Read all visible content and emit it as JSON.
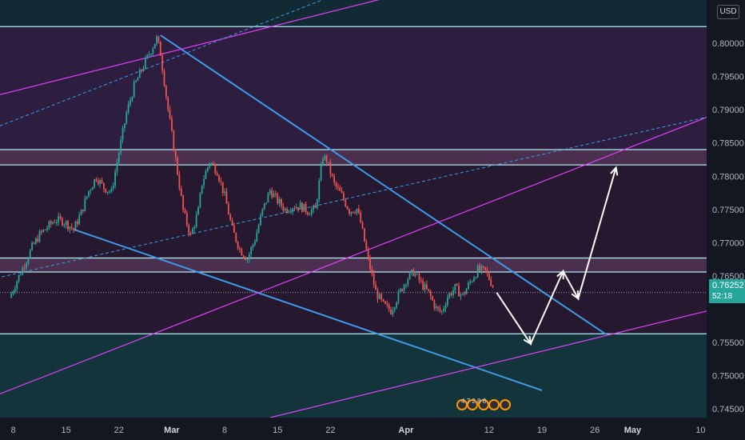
{
  "chart_data": {
    "type": "candlestick",
    "symbol_currency": "USD",
    "last_price": "0.76252",
    "countdown": "52:18",
    "y_ticks": [
      "0.80000",
      "0.79500",
      "0.79000",
      "0.78500",
      "0.78000",
      "0.77500",
      "0.77000",
      "0.76500",
      "0.75500",
      "0.75000",
      "0.74500"
    ],
    "ylim": [
      0.7437,
      0.8065
    ],
    "x_ticks": [
      {
        "label": "8",
        "day": 0,
        "month": false
      },
      {
        "label": "15",
        "day": 7,
        "month": false
      },
      {
        "label": "22",
        "day": 14,
        "month": false
      },
      {
        "label": "Mar",
        "day": 21,
        "month": true
      },
      {
        "label": "8",
        "day": 28,
        "month": false
      },
      {
        "label": "15",
        "day": 35,
        "month": false
      },
      {
        "label": "22",
        "day": 42,
        "month": false
      },
      {
        "label": "Apr",
        "day": 52,
        "month": true
      },
      {
        "label": "12",
        "day": 63,
        "month": false
      },
      {
        "label": "19",
        "day": 70,
        "month": false
      },
      {
        "label": "26",
        "day": 77,
        "month": false
      },
      {
        "label": "May",
        "day": 82,
        "month": true
      },
      {
        "label": "10",
        "day": 91,
        "month": false
      }
    ],
    "path": [
      [
        -0.5,
        0.7617
      ],
      [
        0.5,
        0.7643
      ],
      [
        1.5,
        0.7668
      ],
      [
        2.5,
        0.7693
      ],
      [
        3.5,
        0.7712
      ],
      [
        4.5,
        0.7723
      ],
      [
        5.5,
        0.7734
      ],
      [
        6.5,
        0.7733
      ],
      [
        7.5,
        0.7725
      ],
      [
        8.0,
        0.772
      ],
      [
        9.0,
        0.7745
      ],
      [
        10.0,
        0.7778
      ],
      [
        11.0,
        0.7799
      ],
      [
        12.0,
        0.7783
      ],
      [
        13.0,
        0.7776
      ],
      [
        14.0,
        0.7836
      ],
      [
        15.0,
        0.7895
      ],
      [
        16.0,
        0.7935
      ],
      [
        17.0,
        0.796
      ],
      [
        18.0,
        0.7984
      ],
      [
        19.0,
        0.8007
      ],
      [
        19.5,
        0.7985
      ],
      [
        20.5,
        0.79
      ],
      [
        21.5,
        0.7825
      ],
      [
        22.5,
        0.7748
      ],
      [
        23.5,
        0.771
      ],
      [
        24.5,
        0.7748
      ],
      [
        25.0,
        0.779
      ],
      [
        26.0,
        0.7822
      ],
      [
        27.0,
        0.7808
      ],
      [
        28.0,
        0.777
      ],
      [
        29.0,
        0.772
      ],
      [
        30.0,
        0.769
      ],
      [
        31.0,
        0.7676
      ],
      [
        32.0,
        0.7705
      ],
      [
        33.0,
        0.7748
      ],
      [
        34.0,
        0.7779
      ],
      [
        35.0,
        0.7763
      ],
      [
        36.0,
        0.775
      ],
      [
        37.0,
        0.7755
      ],
      [
        38.0,
        0.7755
      ],
      [
        39.0,
        0.7748
      ],
      [
        40.0,
        0.775
      ],
      [
        41.0,
        0.783
      ],
      [
        41.5,
        0.7824
      ],
      [
        42.5,
        0.7788
      ],
      [
        43.5,
        0.7771
      ],
      [
        44.5,
        0.7748
      ],
      [
        45.5,
        0.7751
      ],
      [
        46.0,
        0.773
      ],
      [
        47.0,
        0.7674
      ],
      [
        48.0,
        0.7626
      ],
      [
        49.0,
        0.7606
      ],
      [
        50.0,
        0.7598
      ],
      [
        51.0,
        0.7621
      ],
      [
        52.0,
        0.7644
      ],
      [
        53.0,
        0.7656
      ],
      [
        54.0,
        0.7639
      ],
      [
        55.0,
        0.7624
      ],
      [
        56.0,
        0.7601
      ],
      [
        56.7,
        0.7595
      ],
      [
        57.5,
        0.7619
      ],
      [
        58.5,
        0.7632
      ],
      [
        59.5,
        0.762
      ],
      [
        60.5,
        0.7641
      ],
      [
        61.5,
        0.7659
      ],
      [
        62.5,
        0.7657
      ],
      [
        63.5,
        0.7636
      ]
    ],
    "trendlines": [
      {
        "from": [
          19.5,
          0.8012
        ],
        "to": [
          78.5,
          0.7562
        ],
        "color": "#3d9be9",
        "width": 2
      },
      {
        "from": [
          8.0,
          0.772
        ],
        "to": [
          70.0,
          0.7478
        ],
        "color": "#3d9be9",
        "width": 2
      },
      {
        "from": [
          -8.0,
          0.7445
        ],
        "to": [
          100.0,
          0.7925
        ],
        "color": "#e040fb",
        "width": 1.2
      },
      {
        "from": [
          -8.0,
          0.7905
        ],
        "to": [
          50.0,
          0.807
        ],
        "color": "#e040fb",
        "width": 1.2
      },
      {
        "from": [
          34.0,
          0.7437
        ],
        "to": [
          100.0,
          0.762
        ],
        "color": "#e040fb",
        "width": 1.2
      },
      {
        "from": [
          -8.0,
          0.7632
        ],
        "to": [
          100.0,
          0.791
        ],
        "color": "#3d9be9",
        "width": 1,
        "dash": "4,3"
      },
      {
        "from": [
          -8.0,
          0.7848
        ],
        "to": [
          42.0,
          0.807
        ],
        "color": "#3d9be9",
        "width": 1,
        "dash": "4,3"
      }
    ],
    "zones": [
      {
        "top": 0.8025,
        "bottom": 0.784,
        "fill": "#2d1d3f"
      },
      {
        "top": 0.784,
        "bottom": 0.7817,
        "fill": "#4a2f4e"
      },
      {
        "top": 0.7817,
        "bottom": 0.7677,
        "fill": "#26182f"
      },
      {
        "top": 0.7677,
        "bottom": 0.7656,
        "fill": "#4a2f4e"
      },
      {
        "top": 0.7656,
        "bottom": 0.7563,
        "fill": "#26182f"
      },
      {
        "top": 0.7563,
        "bottom": 0.7437,
        "fill": "#12343a"
      },
      {
        "top": 0.8065,
        "bottom": 0.8025,
        "fill": "#122a33"
      }
    ],
    "levels": [
      0.8025,
      0.784,
      0.7817,
      0.7677,
      0.7656,
      0.7563
    ],
    "current_line": 0.76252,
    "projection": [
      [
        64,
        0.7625
      ],
      [
        68.5,
        0.7548
      ],
      [
        72.8,
        0.7657
      ],
      [
        74.8,
        0.7616
      ],
      [
        79.8,
        0.7813
      ]
    ]
  },
  "events": {
    "label": "4 7 2 8 8"
  }
}
